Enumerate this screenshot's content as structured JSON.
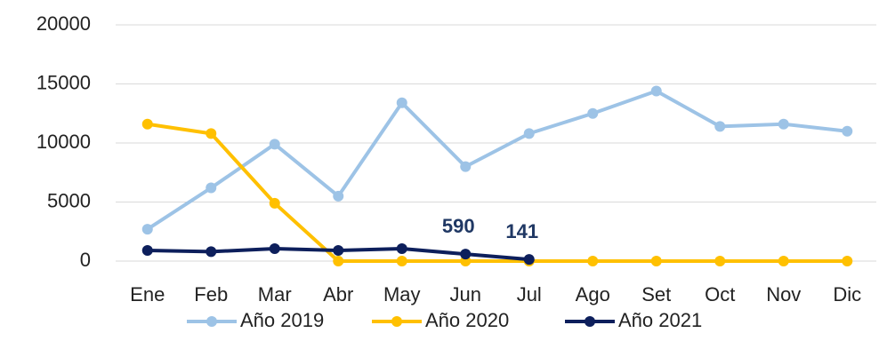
{
  "chart_data": {
    "type": "line",
    "categories": [
      "Ene",
      "Feb",
      "Mar",
      "Abr",
      "May",
      "Jun",
      "Jul",
      "Ago",
      "Set",
      "Oct",
      "Nov",
      "Dic"
    ],
    "series": [
      {
        "name": "Año 2019",
        "color": "#9dc3e6",
        "values": [
          2700,
          6200,
          9900,
          5500,
          13400,
          8000,
          10800,
          12500,
          14400,
          11400,
          11600,
          11000
        ]
      },
      {
        "name": "Año 2020",
        "color": "#ffc000",
        "values": [
          11600,
          10800,
          4900,
          0,
          0,
          0,
          0,
          0,
          0,
          0,
          0,
          0
        ]
      },
      {
        "name": "Año 2021",
        "color": "#0d1f5c",
        "values": [
          900,
          800,
          1050,
          900,
          1050,
          590,
          141,
          null,
          null,
          null,
          null,
          null
        ],
        "value_labels": [
          null,
          null,
          null,
          null,
          null,
          "590",
          "141",
          null,
          null,
          null,
          null,
          null
        ]
      }
    ],
    "ylim": [
      0,
      20000
    ],
    "yticks": [
      0,
      5000,
      10000,
      15000,
      20000
    ],
    "grid": true,
    "legend": "bottom"
  }
}
